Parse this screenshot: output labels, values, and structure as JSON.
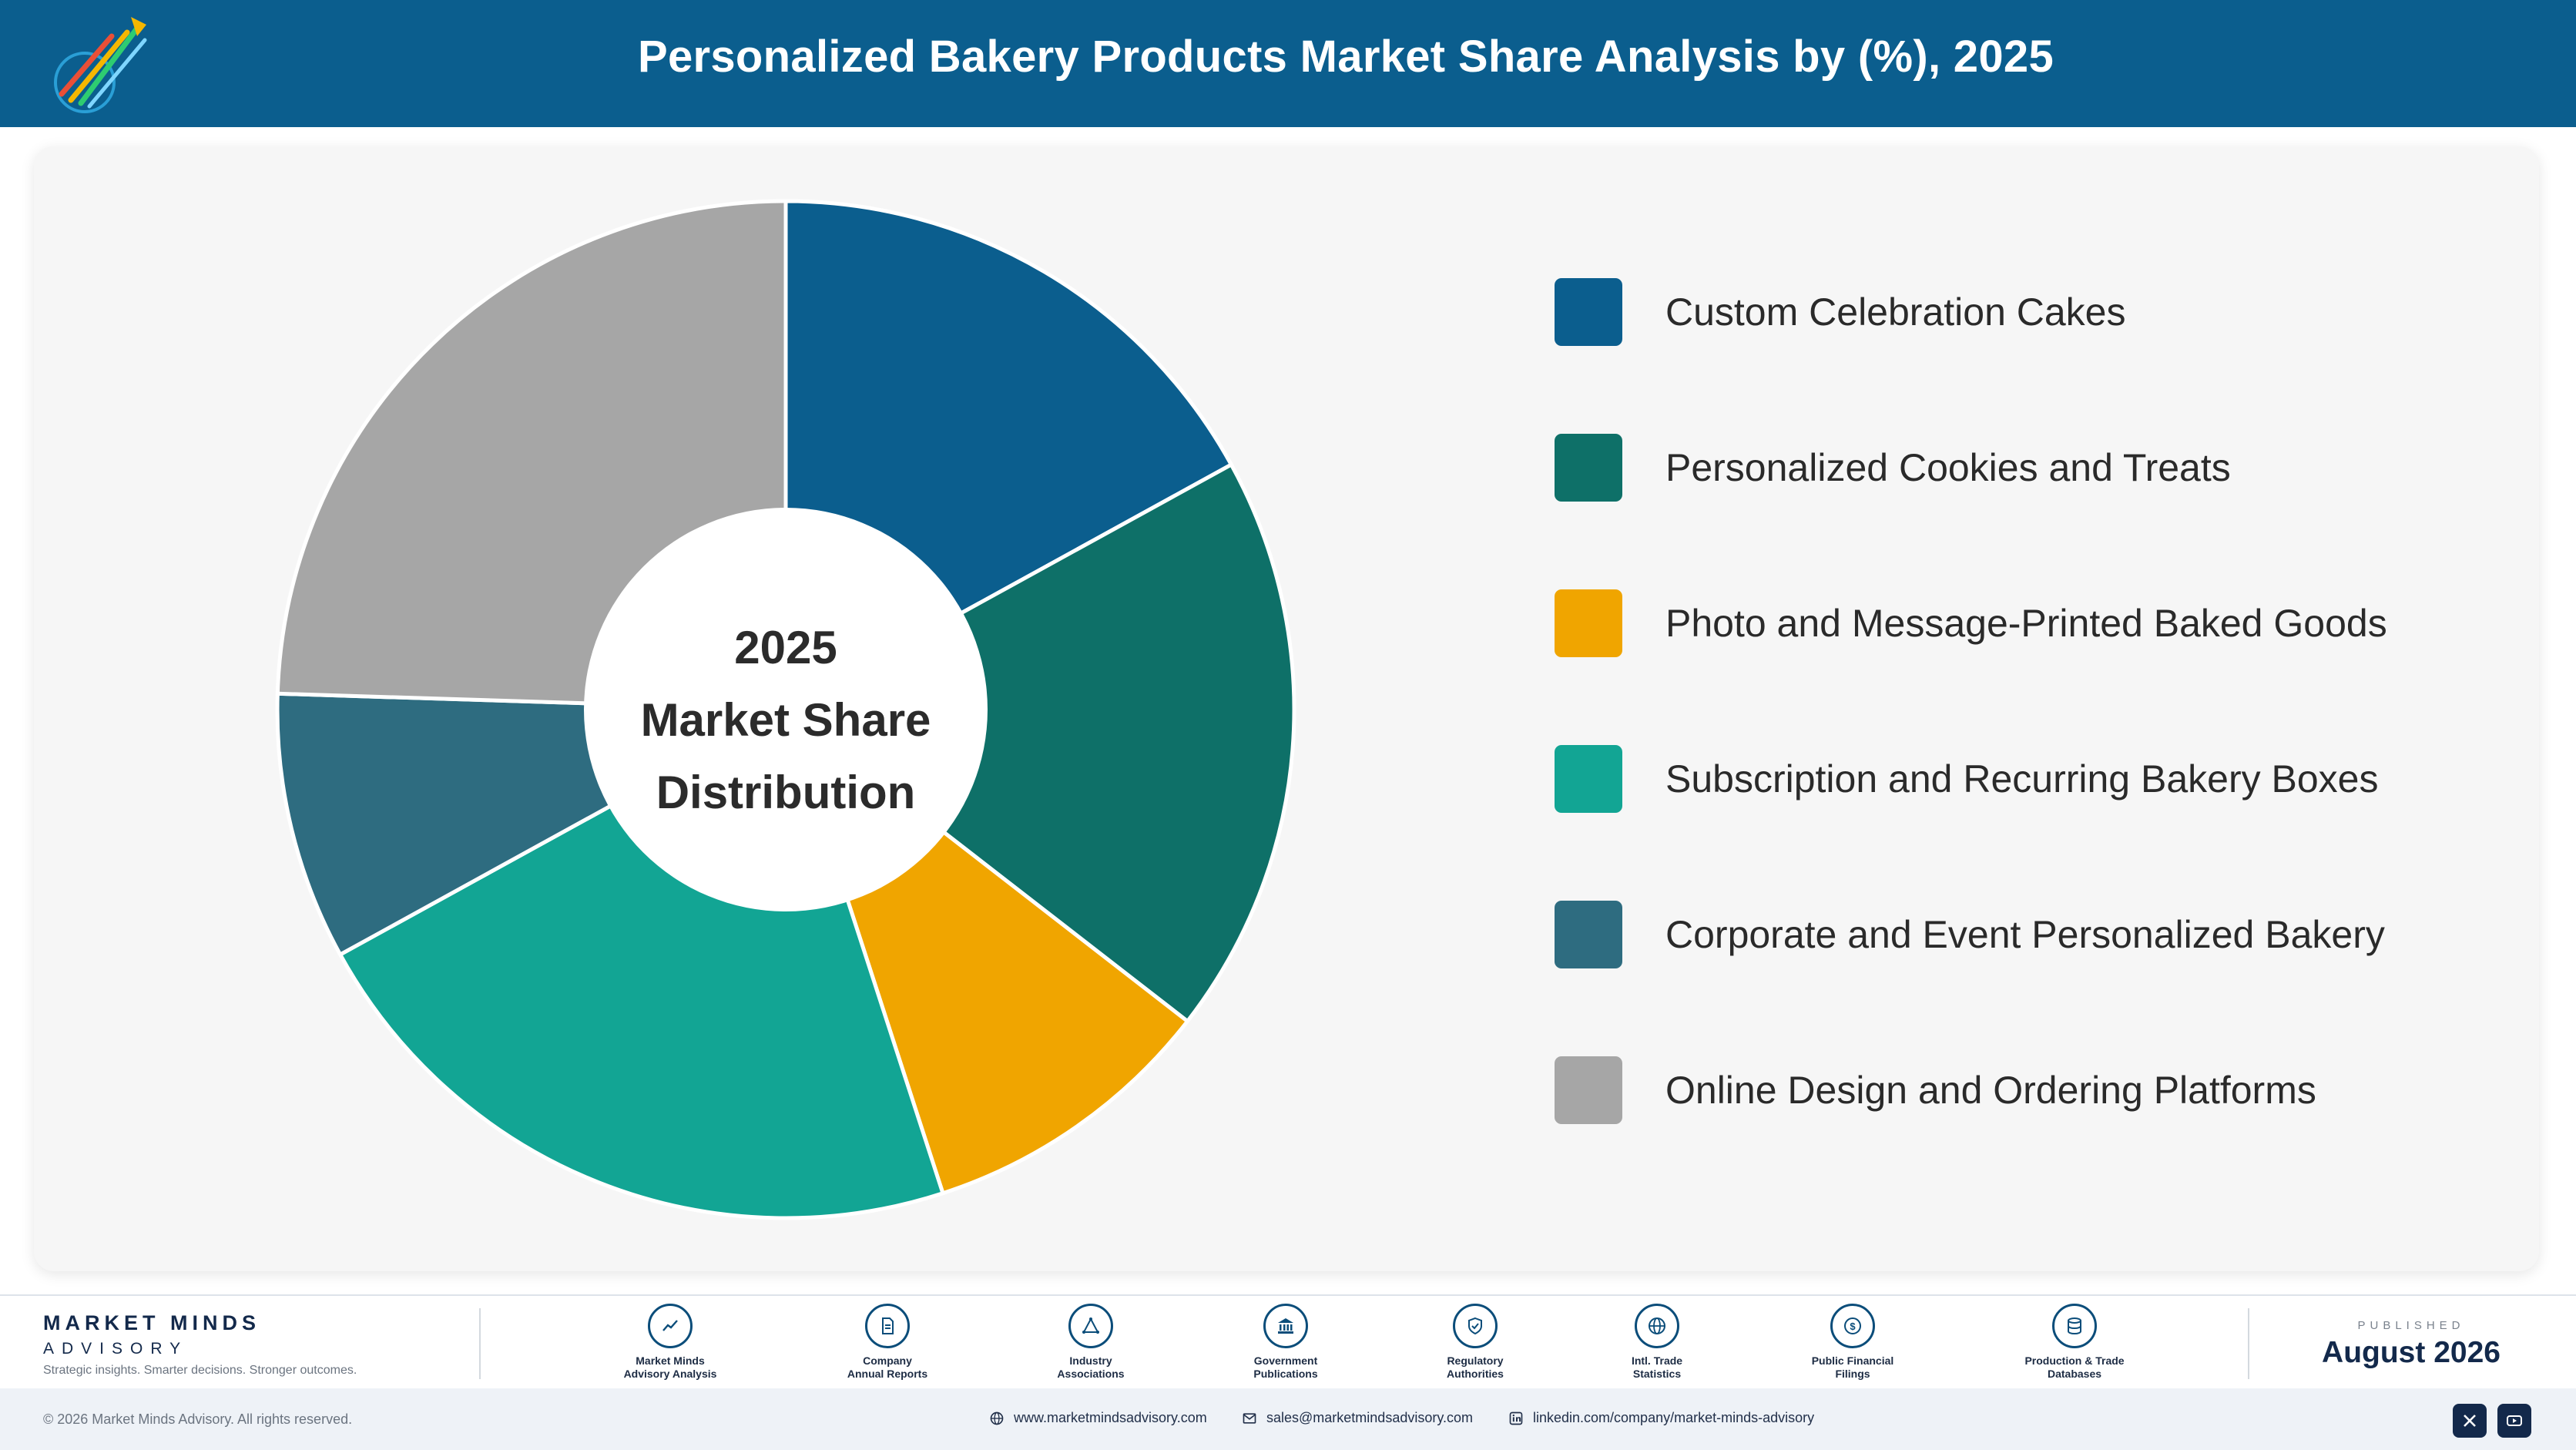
{
  "header": {
    "title": "Personalized Bakery Products Market Share Analysis by (%), 2025"
  },
  "chart_data": {
    "type": "pie",
    "title": "Personalized Bakery Products Market Share Analysis by (%), 2025",
    "center_label": [
      "2025",
      "Market Share",
      "Distribution"
    ],
    "categories": [
      "Custom Celebration Cakes",
      "Personalized Cookies and Treats",
      "Photo and Message-Printed Baked Goods",
      "Subscription and Recurring Bakery Boxes",
      "Corporate and Event Personalized Bakery",
      "Online Design and Ordering Platforms"
    ],
    "values": [
      17,
      18.5,
      9.5,
      22,
      8.5,
      24.5
    ],
    "colors": [
      "#0b5e8e",
      "#0e7068",
      "#f0a500",
      "#12a594",
      "#2e6c80",
      "#a6a6a6"
    ],
    "legend_position": "right"
  },
  "footer": {
    "brand_name": "MARKET MINDS",
    "brand_sub": "ADVISORY",
    "tagline": "Strategic insights. Smarter decisions. Stronger outcomes.",
    "sources": [
      {
        "icon": "chart-line-icon",
        "label_1": "Market Minds",
        "label_2": "Advisory Analysis"
      },
      {
        "icon": "document-icon",
        "label_1": "Company",
        "label_2": "Annual Reports"
      },
      {
        "icon": "network-icon",
        "label_1": "Industry",
        "label_2": "Associations"
      },
      {
        "icon": "government-icon",
        "label_1": "Government",
        "label_2": "Publications"
      },
      {
        "icon": "shield-icon",
        "label_1": "Regulatory",
        "label_2": "Authorities"
      },
      {
        "icon": "globe-icon",
        "label_1": "Intl. Trade",
        "label_2": "Statistics"
      },
      {
        "icon": "dollar-icon",
        "label_1": "Public Financial",
        "label_2": "Filings"
      },
      {
        "icon": "database-icon",
        "label_1": "Production & Trade",
        "label_2": "Databases"
      }
    ],
    "published_label": "PUBLISHED",
    "published_date": "August 2026"
  },
  "bottom_bar": {
    "copyright": "© 2026 Market Minds Advisory. All rights reserved.",
    "website": "www.marketmindsadvisory.com",
    "email": "sales@marketmindsadvisory.com",
    "linkedin": "linkedin.com/company/market-minds-advisory"
  }
}
